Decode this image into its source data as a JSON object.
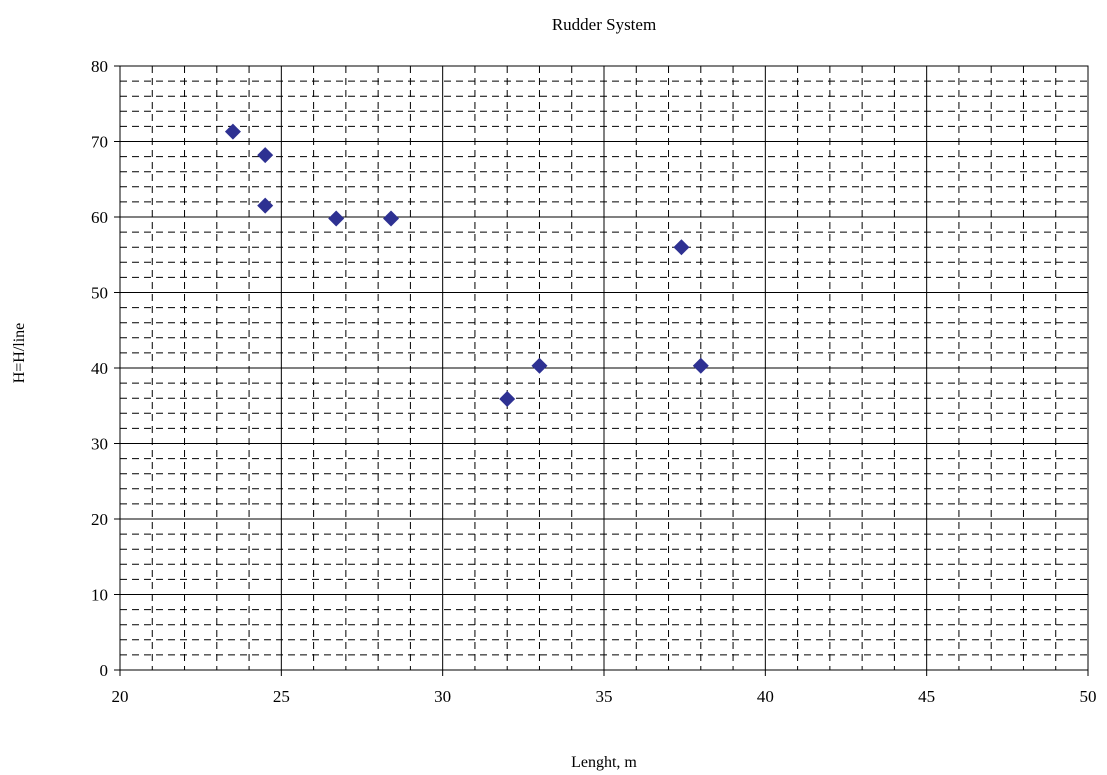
{
  "chart_data": {
    "type": "scatter",
    "title": "Rudder System",
    "xlabel": "Lenght, m",
    "ylabel": "H=H/line",
    "xlim": [
      20,
      50
    ],
    "ylim": [
      0,
      80
    ],
    "x_ticks": [
      20,
      25,
      30,
      35,
      40,
      45,
      50
    ],
    "y_ticks": [
      0,
      10,
      20,
      30,
      40,
      50,
      60,
      70,
      80
    ],
    "x_minor_step": 1,
    "y_minor_step": 2,
    "grid": true,
    "legend": false,
    "marker": "diamond",
    "marker_color": "#2E3192",
    "points": [
      {
        "x": 23.5,
        "y": 71.3
      },
      {
        "x": 24.5,
        "y": 68.2
      },
      {
        "x": 24.5,
        "y": 61.5
      },
      {
        "x": 26.7,
        "y": 59.8
      },
      {
        "x": 28.4,
        "y": 59.8
      },
      {
        "x": 32.0,
        "y": 35.9
      },
      {
        "x": 33.0,
        "y": 40.3
      },
      {
        "x": 37.4,
        "y": 56.0
      },
      {
        "x": 38.0,
        "y": 40.3
      }
    ]
  }
}
